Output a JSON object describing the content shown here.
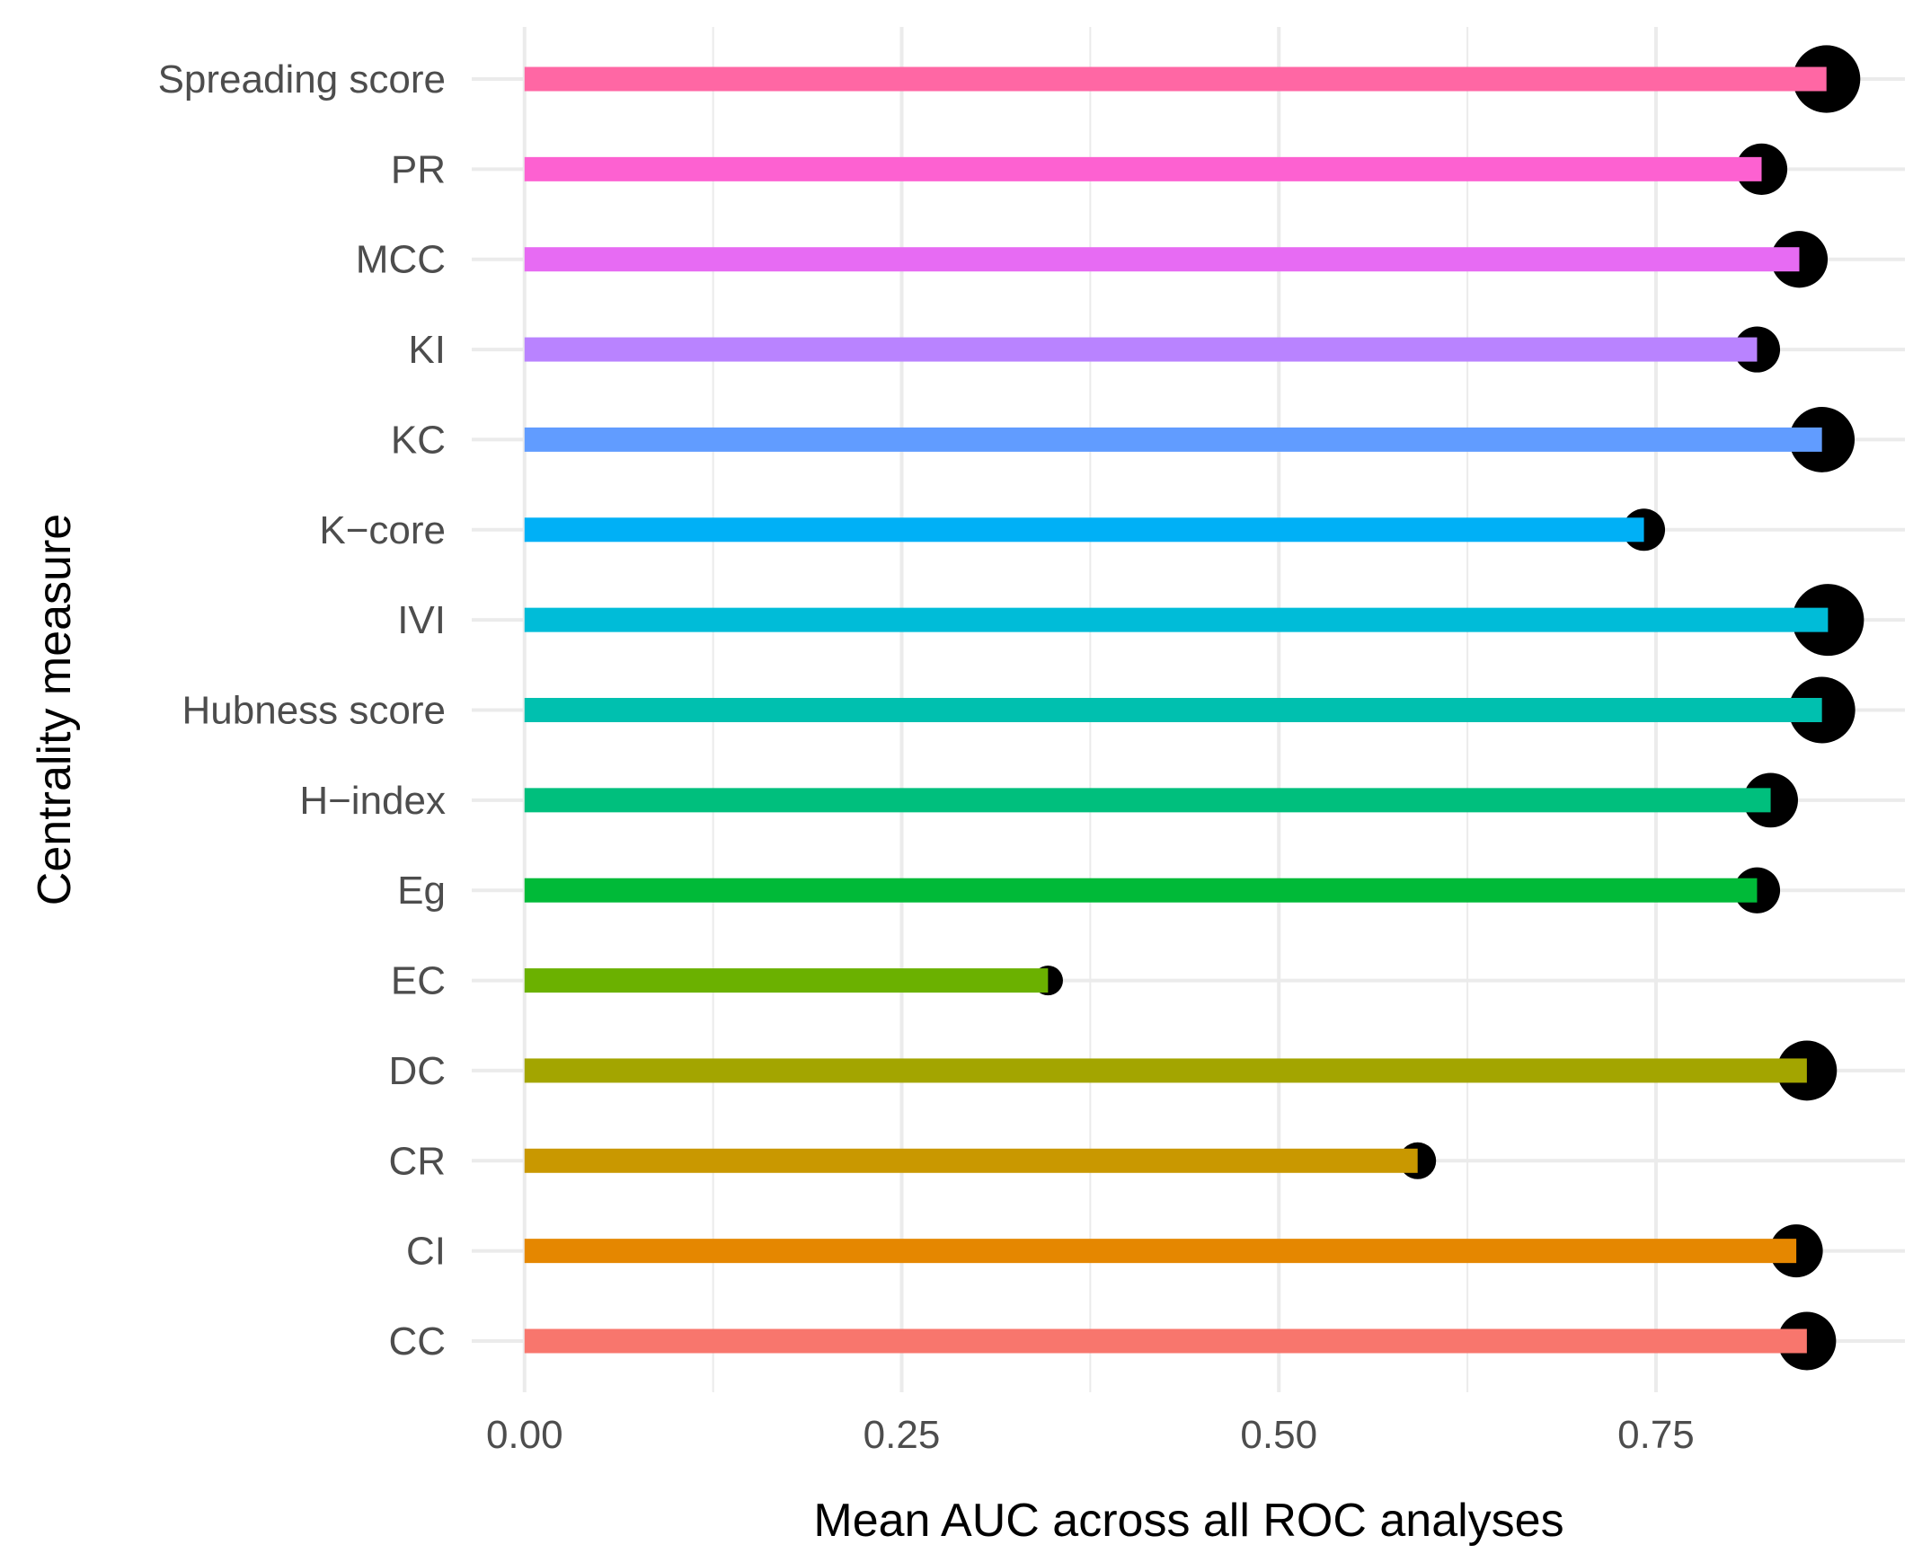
{
  "chart_data": {
    "type": "bar",
    "orientation": "horizontal",
    "xlabel": "Mean AUC across all ROC analyses",
    "ylabel": "Centrality measure",
    "xlim": [
      -0.035,
      0.915
    ],
    "xticks": [
      "0.00",
      "0.25",
      "0.50",
      "0.75"
    ],
    "grid": true,
    "legend": "none",
    "categories": [
      "CC",
      "CI",
      "CR",
      "DC",
      "EC",
      "Eg",
      "H−index",
      "Hubness score",
      "IVI",
      "K−core",
      "KC",
      "KI",
      "MCC",
      "PR",
      "Spreading score"
    ],
    "values": [
      0.85,
      0.843,
      0.592,
      0.85,
      0.347,
      0.817,
      0.826,
      0.86,
      0.864,
      0.742,
      0.86,
      0.817,
      0.845,
      0.82,
      0.863
    ],
    "point_size_relative": [
      0.75,
      0.65,
      0.35,
      0.78,
      0.22,
      0.52,
      0.68,
      0.9,
      1.0,
      0.45,
      0.88,
      0.52,
      0.72,
      0.62,
      0.92
    ],
    "colors": [
      "#F8766D",
      "#E58700",
      "#C99800",
      "#A3A500",
      "#6BB100",
      "#00BA38",
      "#00BF7D",
      "#00C0AF",
      "#00BCD8",
      "#00B0F6",
      "#619CFF",
      "#B983FF",
      "#E76BF3",
      "#FD61D1",
      "#FF67A4"
    ],
    "point_color": "#000000"
  }
}
